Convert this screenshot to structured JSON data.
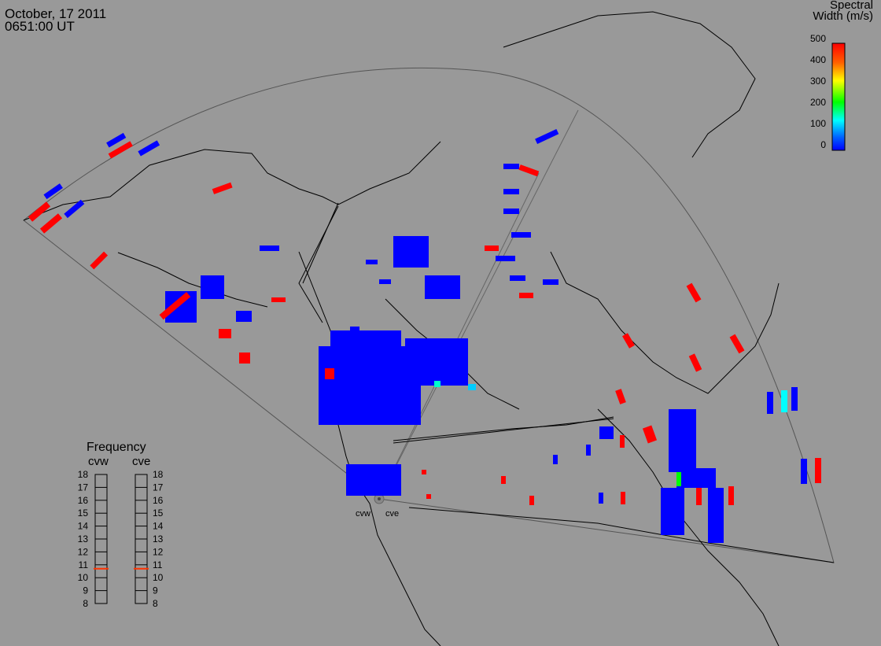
{
  "header": {
    "date": "October, 17 2011",
    "time": "0651:00 UT"
  },
  "colorbar": {
    "title_line1": "Spectral",
    "title_line2": "Width (m/s)",
    "ticks": [
      "500",
      "400",
      "300",
      "200",
      "100",
      "0"
    ],
    "colors": [
      "#ff0000",
      "#ff8000",
      "#ffff00",
      "#00ff00",
      "#00ffff",
      "#0000ff"
    ]
  },
  "frequency_panel": {
    "title": "Frequency",
    "radars": [
      "cvw",
      "cve"
    ],
    "freq_ticks": [
      "18",
      "17",
      "16",
      "15",
      "14",
      "13",
      "12",
      "11",
      "10",
      "9",
      "8"
    ],
    "marker_freq": 10.7,
    "marker_color": "#ff3300"
  },
  "sites": {
    "cvw": "cvw",
    "cve": "cve"
  },
  "colors": {
    "background": "#999999",
    "low_width": "#0000ff",
    "high_width": "#ff0000"
  }
}
